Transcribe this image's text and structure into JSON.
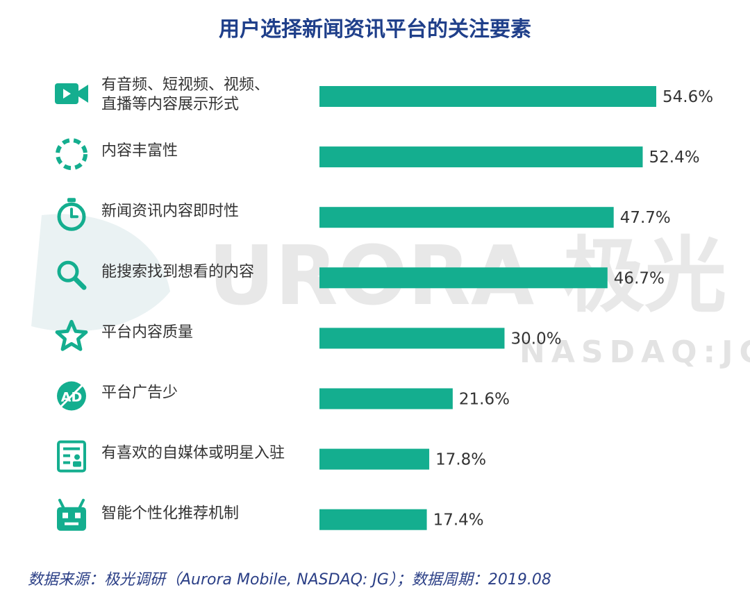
{
  "colors": {
    "bar": "#14ae8f",
    "icon": "#14ae8f",
    "title": "#1f3f8a",
    "label": "#333333",
    "source": "#2b3f86",
    "watermark": "#e6e6e6"
  },
  "watermark": {
    "brand": "URORA 极光",
    "ticker": "NASDAQ:JG"
  },
  "chart_data": {
    "type": "bar",
    "orientation": "horizontal",
    "title": "用户选择新闻资讯平台的关注要素",
    "xlim": [
      0,
      60
    ],
    "grid": false,
    "value_suffix": "%",
    "categories": [
      "有音频、短视频、视频、直播等内容展示形式",
      "内容丰富性",
      "新闻资讯内容即时性",
      "能搜索找到想看的内容",
      "平台内容质量",
      "平台广告少",
      "有喜欢的自媒体或明星入驻",
      "智能个性化推荐机制"
    ],
    "label_lines": [
      [
        "有音频、短视频、视频、",
        "直播等内容展示形式"
      ],
      [
        "内容丰富性"
      ],
      [
        "新闻资讯内容即时性"
      ],
      [
        "能搜索找到想看的内容"
      ],
      [
        "平台内容质量"
      ],
      [
        "平台广告少"
      ],
      [
        "有喜欢的自媒体或明星入驻"
      ],
      [
        "智能个性化推荐机制"
      ]
    ],
    "values": [
      54.6,
      52.4,
      47.7,
      46.7,
      30.0,
      21.6,
      17.8,
      17.4
    ],
    "value_labels": [
      "54.6%",
      "52.4%",
      "47.7%",
      "46.7%",
      "30.0%",
      "21.6%",
      "17.8%",
      "17.4%"
    ],
    "icons": [
      "video-icon",
      "dashed-circle-icon",
      "stopwatch-icon",
      "search-icon",
      "star-icon",
      "no-ad-icon",
      "profile-card-icon",
      "robot-icon"
    ]
  },
  "source_text": "数据来源：极光调研（Aurora Mobile, NASDAQ: JG）；数据周期：2019.08"
}
